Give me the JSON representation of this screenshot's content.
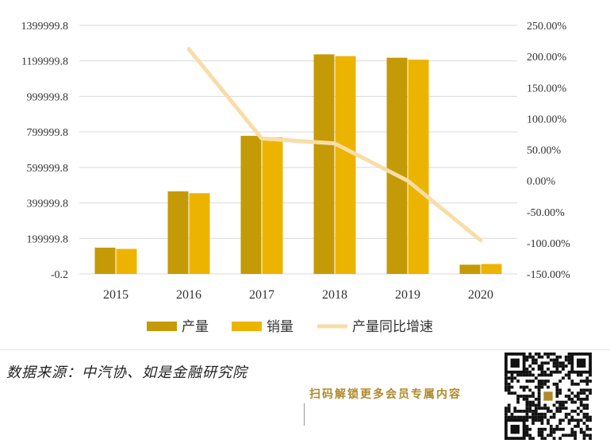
{
  "chart_data": {
    "type": "bar",
    "categories": [
      "2015",
      "2016",
      "2017",
      "2018",
      "2019",
      "2020"
    ],
    "series": [
      {
        "name": "产量",
        "kind": "bar",
        "axis": "left",
        "color": "#C49A06",
        "values": [
          148000,
          465000,
          778000,
          1237000,
          1218000,
          52000
        ]
      },
      {
        "name": "销量",
        "kind": "bar",
        "axis": "left",
        "color": "#ECB400",
        "values": [
          141000,
          455000,
          770000,
          1227000,
          1207000,
          56000
        ]
      },
      {
        "name": "产量同比增速",
        "kind": "line",
        "axis": "right",
        "color": "#F8DDA8",
        "values": [
          null,
          212,
          68,
          60,
          0,
          -96
        ]
      }
    ],
    "y_left": {
      "ticks": [
        "1399999.8",
        "1199999.8",
        "999999.8",
        "799999.8",
        "599999.8",
        "399999.8",
        "199999.8",
        "-0.2"
      ],
      "ylim": [
        -0.2,
        1399999.8
      ]
    },
    "y_right": {
      "ticks": [
        "250.00%",
        "200.00%",
        "150.00%",
        "100.00%",
        "50.00%",
        "0.00%",
        "-50.00%",
        "-100.00%",
        "-150.00%"
      ],
      "ylim": [
        -150,
        250
      ]
    },
    "grid": true,
    "legend_position": "bottom"
  },
  "footer": {
    "source": "数据来源：中汽协、如是金融研究院",
    "promo": "扫码解锁更多会员专属内容"
  },
  "colors": {
    "promo": "#B08A2A"
  },
  "icons": {
    "qr": "qr-code-icon"
  }
}
